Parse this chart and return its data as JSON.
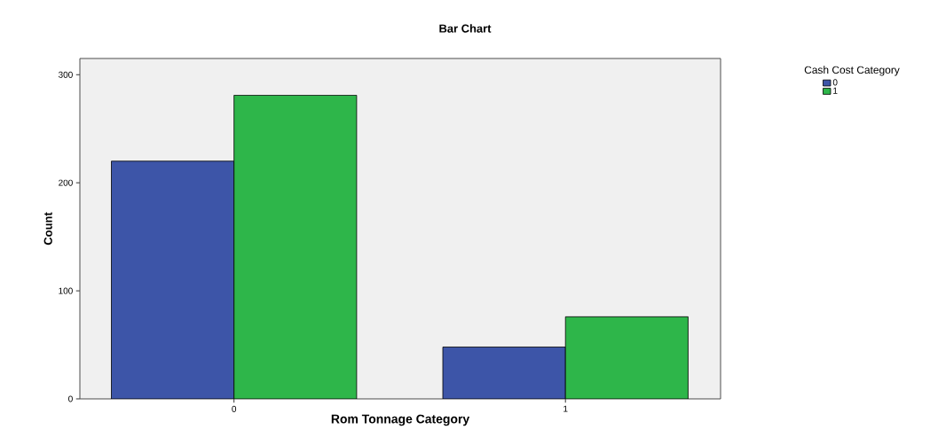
{
  "chart_data": {
    "type": "bar",
    "title": "Bar Chart",
    "xlabel": "Rom Tonnage Category",
    "ylabel": "Count",
    "legend_title": "Cash Cost Category",
    "categories": [
      "0",
      "1"
    ],
    "series": [
      {
        "name": "0",
        "color": "#3d55a8",
        "values": [
          220,
          48
        ]
      },
      {
        "name": "1",
        "color": "#2eb64a",
        "values": [
          281,
          76
        ]
      }
    ],
    "ylim": [
      0,
      315
    ],
    "yticks": [
      0,
      100,
      200,
      300
    ],
    "grid": false,
    "legend": "top right"
  }
}
